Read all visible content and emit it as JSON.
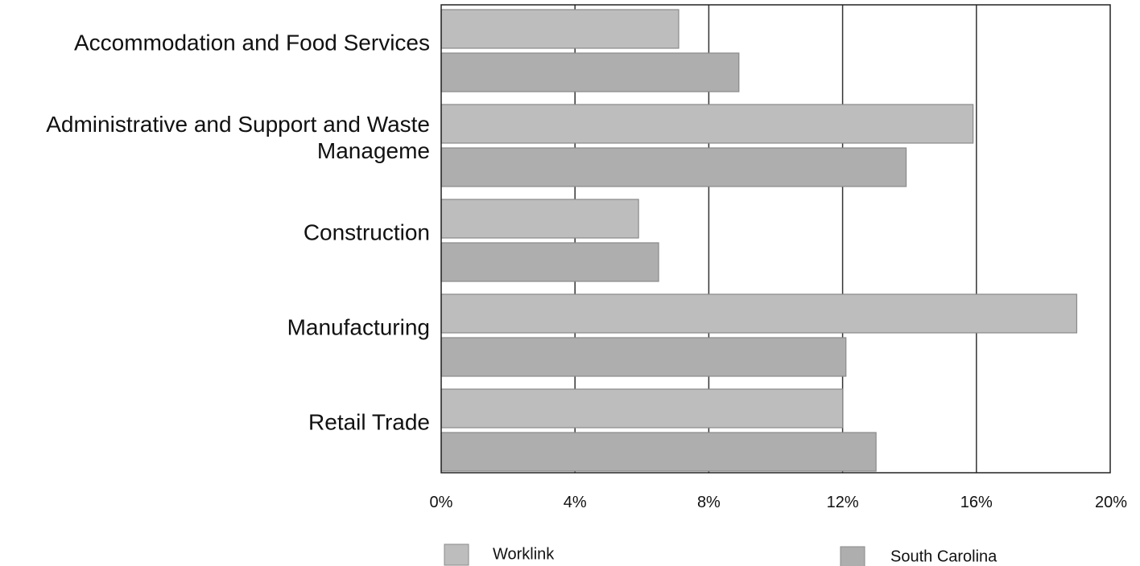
{
  "chart_data": {
    "type": "bar",
    "orientation": "horizontal",
    "categories": [
      [
        "Accommodation and Food Services"
      ],
      [
        "Administrative and Support and Waste",
        "Manageme"
      ],
      [
        "Construction"
      ],
      [
        "Manufacturing"
      ],
      [
        "Retail Trade"
      ]
    ],
    "series": [
      {
        "name": "Worklink",
        "values": [
          7.1,
          15.9,
          5.9,
          19.0,
          12.0
        ],
        "color": "#bdbdbd"
      },
      {
        "name": "South Carolina",
        "values": [
          8.9,
          13.9,
          6.5,
          12.1,
          13.0
        ],
        "color": "#aeaeae"
      }
    ],
    "xlim": [
      0,
      20
    ],
    "xticks": [
      0,
      4,
      8,
      12,
      16,
      20
    ],
    "xtick_labels": [
      "0%",
      "4%",
      "8%",
      "12%",
      "16%",
      "20%"
    ],
    "xlabel": "",
    "ylabel": "",
    "title": "",
    "grid": "vertical",
    "legend_position": "bottom"
  }
}
